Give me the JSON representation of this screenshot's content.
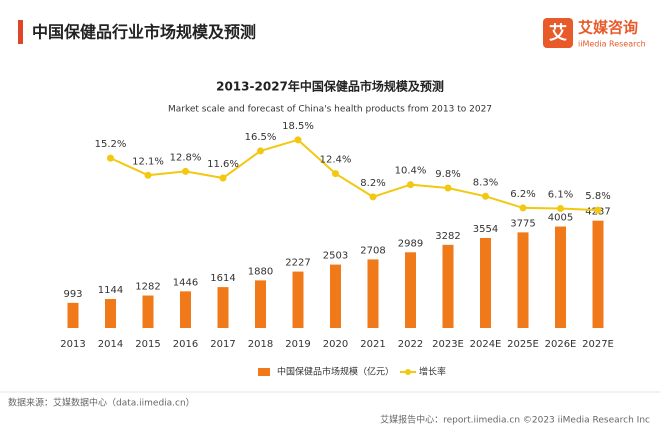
{
  "header": {
    "title": "中国保健品行业市场规模及预测",
    "logo": "艾媒咨询",
    "logo_sub": "iiMedia Research"
  },
  "chart_data": {
    "type": "bar",
    "title": "2013-2027年中国保健品市场规模及预测",
    "subtitle": "Market scale and forecast of China's health products from 2013 to 2027",
    "categories": [
      "2013",
      "2014",
      "2015",
      "2016",
      "2017",
      "2018",
      "2019",
      "2020",
      "2021",
      "2022",
      "2023E",
      "2024E",
      "2025E",
      "2026E",
      "2027E"
    ],
    "series": [
      {
        "name": "中国保健品市场规模（亿元）",
        "color": "#f07a1a",
        "values": [
          993,
          1144,
          1282,
          1446,
          1614,
          1880,
          2227,
          2503,
          2708,
          2989,
          3282,
          3554,
          3775,
          4005,
          4237
        ]
      },
      {
        "name": "增长率",
        "color": "#f2c811",
        "axis": "y2",
        "values": [
          null,
          15.2,
          12.1,
          12.8,
          11.6,
          16.5,
          18.5,
          12.4,
          8.2,
          10.4,
          9.8,
          8.3,
          6.2,
          6.1,
          5.8
        ],
        "value_labels": [
          null,
          "15.2%",
          "12.1%",
          "12.8%",
          "11.6%",
          "16.5%",
          "18.5%",
          "12.4%",
          "8.2%",
          "10.4%",
          "9.8%",
          "8.3%",
          "6.2%",
          "6.1%",
          "5.8%"
        ]
      }
    ],
    "ylim": [
      0,
      9000
    ],
    "y2lim": [
      -15.5,
      25.7
    ],
    "legend": "bottom"
  },
  "footer": {
    "source": "数据来源：艾媒数据中心（data.iimedia.cn）",
    "credit": "艾媒报告中心：report.iimedia.cn ©2023 iiMedia Research Inc"
  }
}
